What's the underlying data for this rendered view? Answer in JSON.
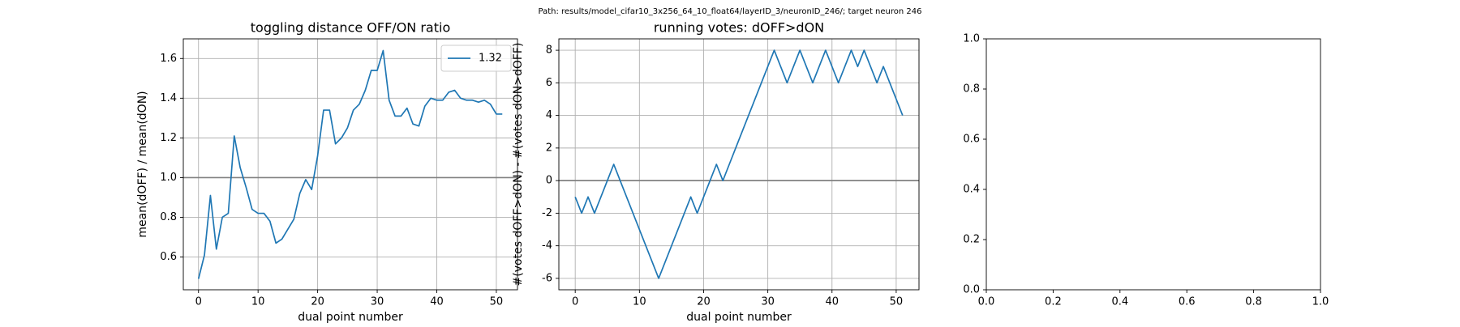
{
  "title": "Path: results/model_cifar10_3x256_64_10_float64/layerID_3/neuronID_246/; target neuron 246",
  "chart_data": [
    {
      "type": "line",
      "title": "toggling distance OFF/ON ratio",
      "xlabel": "dual point number",
      "ylabel": "mean(dOFF) / mean(dON)",
      "x": [
        0,
        1,
        2,
        3,
        4,
        5,
        6,
        7,
        8,
        9,
        10,
        11,
        12,
        13,
        14,
        15,
        16,
        17,
        18,
        19,
        20,
        21,
        22,
        23,
        24,
        25,
        26,
        27,
        28,
        29,
        30,
        31,
        32,
        33,
        34,
        35,
        36,
        37,
        38,
        39,
        40,
        41,
        42,
        43,
        44,
        45,
        46,
        47,
        48,
        49,
        50,
        51
      ],
      "series": [
        {
          "name": "1.32",
          "color": "#1f77b4",
          "values": [
            0.49,
            0.61,
            0.91,
            0.64,
            0.8,
            0.82,
            1.21,
            1.05,
            0.95,
            0.84,
            0.82,
            0.82,
            0.78,
            0.67,
            0.69,
            0.74,
            0.79,
            0.92,
            0.99,
            0.94,
            1.11,
            1.34,
            1.34,
            1.17,
            1.2,
            1.25,
            1.34,
            1.37,
            1.44,
            1.54,
            1.54,
            1.64,
            1.39,
            1.31,
            1.31,
            1.35,
            1.27,
            1.26,
            1.36,
            1.4,
            1.39,
            1.39,
            1.43,
            1.44,
            1.4,
            1.39,
            1.39,
            1.38,
            1.39,
            1.37,
            1.32,
            1.32
          ]
        }
      ],
      "hline": 1.0,
      "hline_color": "#808080",
      "xlim": [
        -2.55,
        53.55
      ],
      "xticks": [
        0,
        10,
        20,
        30,
        40,
        50
      ],
      "ylim": [
        0.435,
        1.699
      ],
      "yticks": [
        0.6,
        0.8,
        {
          "value": 1.0,
          "label": "1.0"
        },
        1.2,
        1.4,
        1.6
      ],
      "grid": true,
      "legend": "upper-right"
    },
    {
      "type": "line",
      "title": "running votes: dOFF>dON",
      "xlabel": "dual point number",
      "ylabel": "#(votes dOFF>dON) - #(votes dON>dOFF)",
      "x": [
        0,
        1,
        2,
        3,
        4,
        5,
        6,
        7,
        8,
        9,
        10,
        11,
        12,
        13,
        14,
        15,
        16,
        17,
        18,
        19,
        20,
        21,
        22,
        23,
        24,
        25,
        26,
        27,
        28,
        29,
        30,
        31,
        32,
        33,
        34,
        35,
        36,
        37,
        38,
        39,
        40,
        41,
        42,
        43,
        44,
        45,
        46,
        47,
        48,
        49,
        50,
        51
      ],
      "series": [
        {
          "color": "#1f77b4",
          "values": [
            -1,
            -2,
            -1,
            -2,
            -1,
            0,
            1,
            0,
            -1,
            -2,
            -3,
            -4,
            -5,
            -6,
            -5,
            -4,
            -3,
            -2,
            -1,
            -2,
            -1,
            0,
            1,
            0,
            1,
            2,
            3,
            4,
            5,
            6,
            7,
            8,
            7,
            6,
            7,
            8,
            7,
            6,
            7,
            8,
            7,
            6,
            7,
            8,
            7,
            8,
            7,
            6,
            7,
            6,
            5,
            4
          ]
        }
      ],
      "hline": 0,
      "hline_color": "#808080",
      "xlim": [
        -2.55,
        53.55
      ],
      "xticks": [
        0,
        10,
        20,
        30,
        40,
        50
      ],
      "ylim": [
        -6.7,
        8.7
      ],
      "yticks": [
        -6,
        -4,
        -2,
        0,
        2,
        4,
        6,
        8
      ],
      "grid": true
    },
    {
      "type": "empty",
      "xlim": [
        0,
        1
      ],
      "xticks": [
        {
          "value": 0,
          "label": "0.0"
        },
        0.2,
        0.4,
        0.6,
        0.8,
        {
          "value": 1,
          "label": "1.0"
        }
      ],
      "ylim": [
        0,
        1
      ],
      "yticks": [
        {
          "value": 0,
          "label": "0.0"
        },
        0.2,
        0.4,
        0.6,
        0.8,
        {
          "value": 1,
          "label": "1.0"
        }
      ],
      "grid": false
    }
  ]
}
